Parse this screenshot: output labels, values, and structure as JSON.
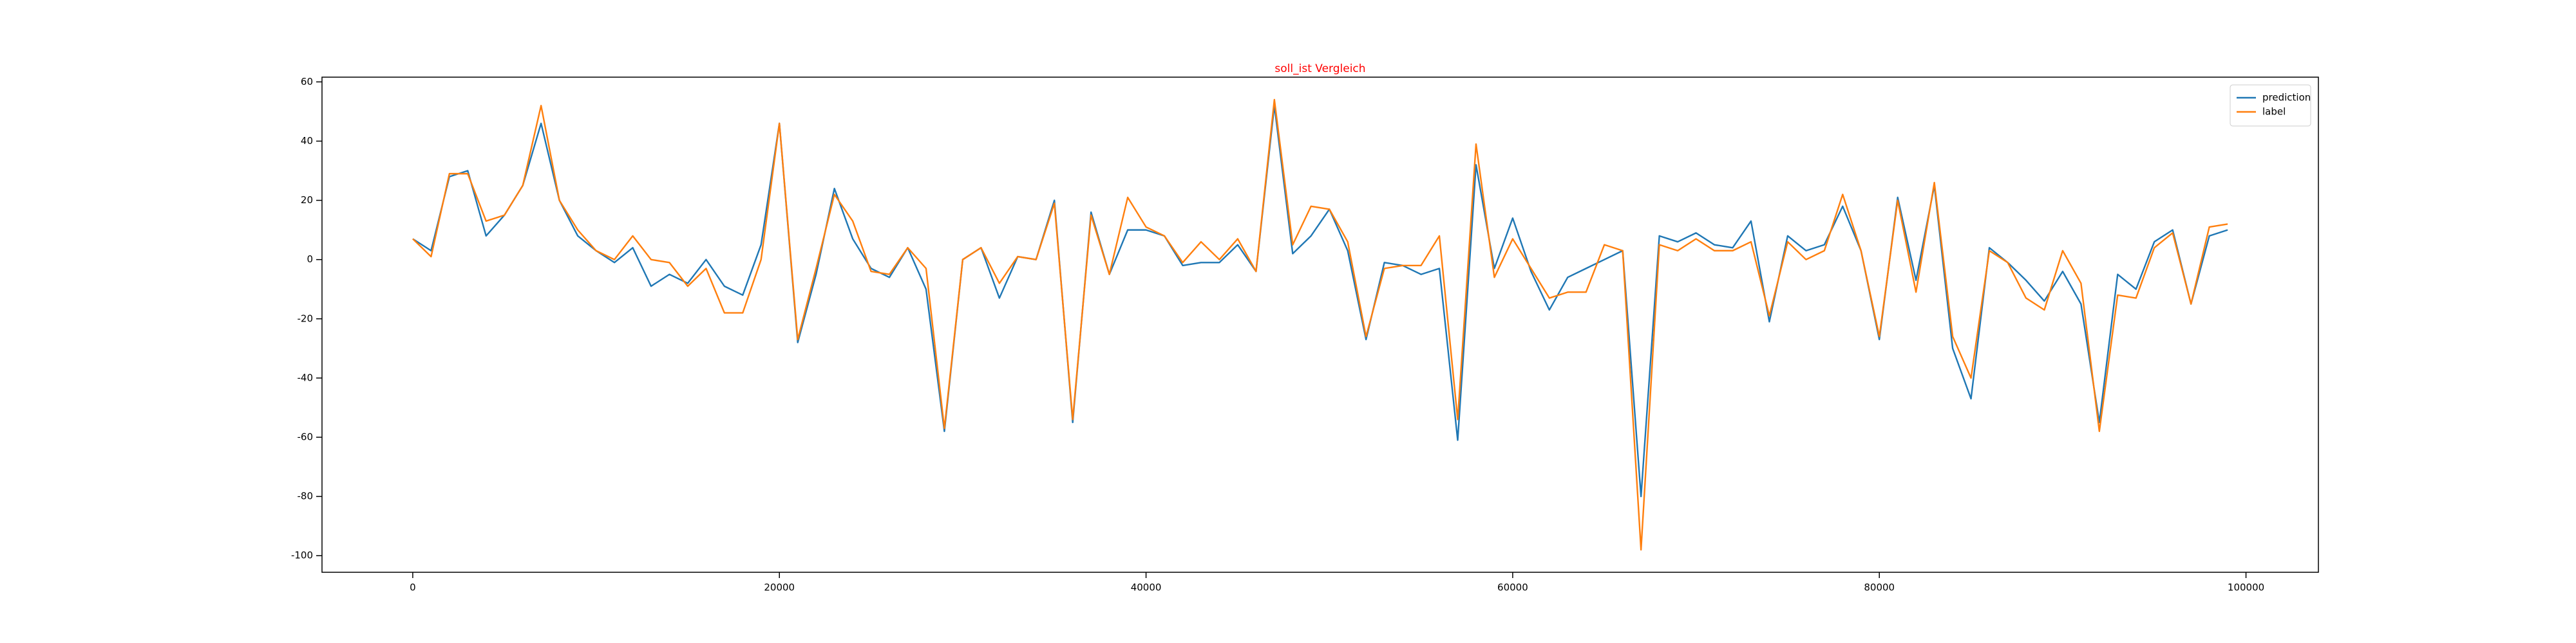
{
  "chart_data": {
    "type": "line",
    "title": "soll_ist Vergleich",
    "title_color": "#ff0000",
    "x": [
      0,
      1000,
      2000,
      3000,
      4000,
      5000,
      6000,
      7000,
      8000,
      9000,
      10000,
      11000,
      12000,
      13000,
      14000,
      15000,
      16000,
      17000,
      18000,
      19000,
      20000,
      21000,
      22000,
      23000,
      24000,
      25000,
      26000,
      27000,
      28000,
      29000,
      30000,
      31000,
      32000,
      33000,
      34000,
      35000,
      36000,
      37000,
      38000,
      39000,
      40000,
      41000,
      42000,
      43000,
      44000,
      45000,
      46000,
      47000,
      48000,
      49000,
      50000,
      51000,
      52000,
      53000,
      54000,
      55000,
      56000,
      57000,
      58000,
      59000,
      60000,
      61000,
      62000,
      63000,
      64000,
      65000,
      66000,
      67000,
      68000,
      69000,
      70000,
      71000,
      72000,
      73000,
      74000,
      75000,
      76000,
      77000,
      78000,
      79000,
      80000,
      81000,
      82000,
      83000,
      84000,
      85000,
      86000,
      87000,
      88000,
      89000,
      90000,
      91000,
      92000,
      93000,
      94000,
      95000,
      96000,
      97000,
      98000,
      99000
    ],
    "series": [
      {
        "name": "prediction",
        "color": "#1f77b4",
        "values": [
          7,
          3,
          28,
          30,
          8,
          15,
          25,
          46,
          20,
          8,
          3,
          -1,
          4,
          -9,
          -5,
          -8,
          0,
          -9,
          -12,
          5,
          46,
          -28,
          -5,
          24,
          7,
          -3,
          -6,
          4,
          -10,
          -58,
          0,
          4,
          -13,
          1,
          0,
          20,
          -55,
          16,
          -5,
          10,
          10,
          8,
          -2,
          -1,
          -1,
          5,
          -4,
          52,
          2,
          8,
          17,
          3,
          -27,
          -1,
          -2,
          -5,
          -3,
          -61,
          32,
          -3,
          14,
          -4,
          -17,
          -6,
          -3,
          0,
          3,
          -80,
          8,
          6,
          9,
          5,
          4,
          13,
          -21,
          8,
          3,
          5,
          18,
          3,
          -27,
          21,
          -7,
          25,
          -30,
          -47,
          4,
          -1,
          -7,
          -14,
          -4,
          -15,
          -55,
          -5,
          -10,
          6,
          10,
          -15,
          8,
          10
        ]
      },
      {
        "name": "label",
        "color": "#ff7f0e",
        "values": [
          7,
          1,
          29,
          29,
          13,
          15,
          25,
          52,
          20,
          10,
          3,
          0,
          8,
          0,
          -1,
          -9,
          -3,
          -18,
          -18,
          0,
          46,
          -27,
          -3,
          22,
          13,
          -4,
          -5,
          4,
          -3,
          -57,
          0,
          4,
          -8,
          1,
          0,
          19,
          -54,
          15,
          -5,
          21,
          11,
          8,
          -1,
          6,
          0,
          7,
          -4,
          54,
          5,
          18,
          17,
          6,
          -26,
          -3,
          -2,
          -2,
          8,
          -54,
          39,
          -6,
          7,
          -3,
          -13,
          -11,
          -11,
          5,
          3,
          -98,
          5,
          3,
          7,
          3,
          3,
          6,
          -19,
          6,
          0,
          3,
          22,
          3,
          -26,
          20,
          -11,
          26,
          -26,
          -40,
          3,
          -1,
          -13,
          -17,
          3,
          -8,
          -58,
          -12,
          -13,
          4,
          9,
          -15,
          11,
          12
        ]
      }
    ],
    "xlim": [
      -4950,
      103950
    ],
    "ylim": [
      -105.6,
      61.6
    ],
    "xticks": [
      0,
      20000,
      40000,
      60000,
      80000,
      100000
    ],
    "yticks": [
      -100,
      -80,
      -60,
      -40,
      -20,
      0,
      20,
      40,
      60
    ],
    "legend": "upper right"
  }
}
